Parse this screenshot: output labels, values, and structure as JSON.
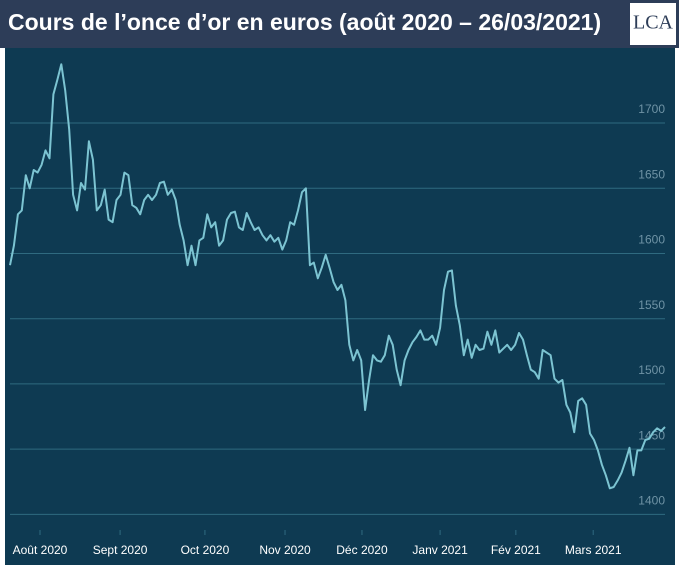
{
  "logo": "LCA",
  "chart_data": {
    "type": "line",
    "title": "Cours de l’once d’or en euros (août 2020 – 26/03/2021)",
    "color": "#7cc4d2",
    "grid": true,
    "xlim": [
      0,
      166
    ],
    "xticks": [
      {
        "value": 7.6,
        "label": "Août 2020"
      },
      {
        "value": 27.9,
        "label": "Sept 2020"
      },
      {
        "value": 49.4,
        "label": "Oct 2020"
      },
      {
        "value": 69.7,
        "label": "Nov 2020"
      },
      {
        "value": 89.2,
        "label": "Déc 2020"
      },
      {
        "value": 109,
        "label": "Janv 2021"
      },
      {
        "value": 128.2,
        "label": "Fév 2021"
      },
      {
        "value": 147.8,
        "label": "Mars 2021"
      }
    ],
    "ylim": [
      1388,
      1756
    ],
    "yticks": [
      1400,
      1450,
      1500,
      1550,
      1600,
      1650,
      1700
    ],
    "values": [
      1591,
      1606,
      1630,
      1633,
      1660,
      1650,
      1664,
      1662,
      1668,
      1679,
      1673,
      1722,
      1733,
      1745,
      1725,
      1695,
      1645,
      1633,
      1654,
      1649,
      1686,
      1672,
      1633,
      1637,
      1649,
      1626,
      1624,
      1641,
      1645,
      1662,
      1660,
      1637,
      1635,
      1630,
      1641,
      1645,
      1641,
      1645,
      1654,
      1655,
      1645,
      1649,
      1641,
      1622,
      1610,
      1591,
      1606,
      1591,
      1610,
      1612,
      1630,
      1620,
      1624,
      1606,
      1610,
      1626,
      1631,
      1632,
      1620,
      1618,
      1631,
      1624,
      1618,
      1620,
      1614,
      1610,
      1614,
      1609,
      1612,
      1603,
      1610,
      1624,
      1622,
      1633,
      1647,
      1650,
      1591,
      1593,
      1581,
      1589,
      1599,
      1589,
      1578,
      1572,
      1576,
      1564,
      1530,
      1518,
      1526,
      1518,
      1480,
      1503,
      1522,
      1518,
      1517,
      1522,
      1537,
      1530,
      1511,
      1499,
      1518,
      1526,
      1532,
      1536,
      1541,
      1534,
      1534,
      1537,
      1530,
      1543,
      1572,
      1586,
      1587,
      1560,
      1545,
      1522,
      1534,
      1520,
      1530,
      1526,
      1527,
      1540,
      1530,
      1541,
      1524,
      1527,
      1530,
      1526,
      1530,
      1539,
      1534,
      1522,
      1511,
      1509,
      1504,
      1526,
      1524,
      1522,
      1504,
      1501,
      1503,
      1484,
      1478,
      1463,
      1487,
      1489,
      1484,
      1462,
      1457,
      1449,
      1438,
      1430,
      1420,
      1421,
      1426,
      1432,
      1441,
      1451,
      1430,
      1449,
      1449,
      1457,
      1458,
      1463,
      1466,
      1464,
      1467
    ]
  }
}
